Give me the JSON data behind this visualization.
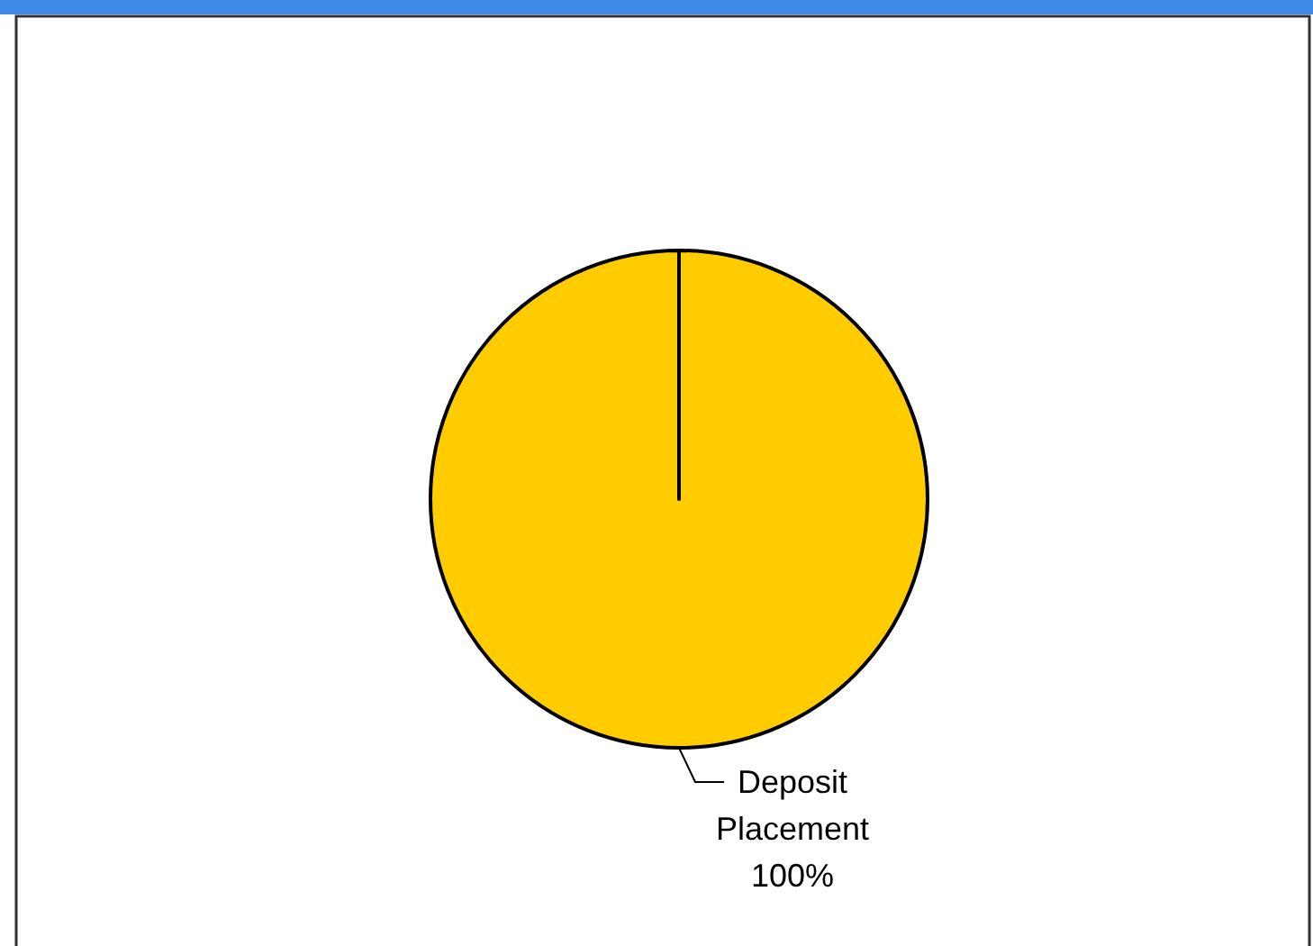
{
  "chart_data": {
    "type": "pie",
    "categories": [
      "Deposit Placement"
    ],
    "values": [
      100
    ],
    "colors": [
      "#ffcc00"
    ],
    "value_labels": [
      "100%"
    ]
  }
}
